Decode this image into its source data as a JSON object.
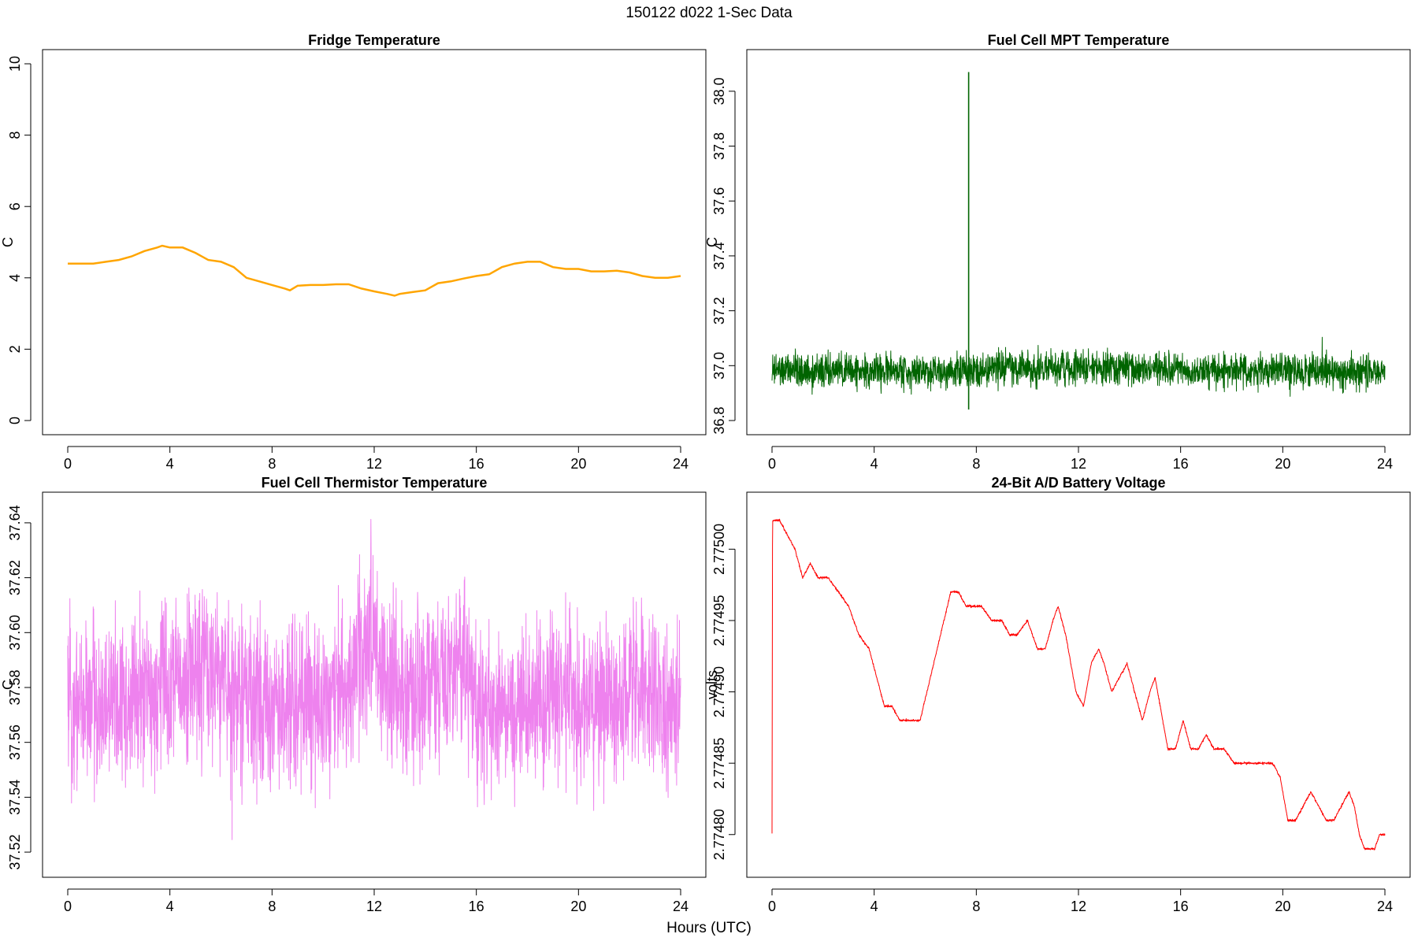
{
  "title": "150122   d022   1-Sec Data",
  "xlabel": "Hours (UTC)",
  "chart_data": [
    {
      "type": "line",
      "title": "Fridge Temperature",
      "ylabel": "C",
      "xlabel": "Hours (UTC)",
      "color": "#FFA500",
      "noise": 0,
      "xlim": [
        0,
        24
      ],
      "ylim": [
        0,
        10
      ],
      "xticks": [
        0,
        4,
        8,
        12,
        16,
        20,
        24
      ],
      "yticks": [
        0,
        2,
        4,
        6,
        8,
        10
      ],
      "ytick_labels": [
        "0",
        "2",
        "4",
        "6",
        "8",
        "10"
      ],
      "series": [
        {
          "name": "Fridge Temperature",
          "x": [
            0,
            0.5,
            1,
            1.5,
            2,
            2.5,
            3,
            3.5,
            3.7,
            4,
            4.5,
            5,
            5.5,
            6,
            6.5,
            7,
            7.5,
            8,
            8.5,
            8.7,
            9,
            9.5,
            10,
            10.5,
            11,
            11.5,
            12,
            12.5,
            12.8,
            13,
            13.5,
            14,
            14.5,
            15,
            15.5,
            16,
            16.5,
            17,
            17.5,
            18,
            18.5,
            19,
            19.5,
            20,
            20.5,
            21,
            21.5,
            22,
            22.5,
            23,
            23.5,
            24
          ],
          "values": [
            4.4,
            4.4,
            4.4,
            4.45,
            4.5,
            4.6,
            4.75,
            4.85,
            4.9,
            4.85,
            4.85,
            4.7,
            4.5,
            4.45,
            4.3,
            4.0,
            3.9,
            3.8,
            3.7,
            3.65,
            3.78,
            3.8,
            3.8,
            3.82,
            3.82,
            3.7,
            3.62,
            3.55,
            3.5,
            3.55,
            3.6,
            3.65,
            3.85,
            3.9,
            3.98,
            4.05,
            4.1,
            4.3,
            4.4,
            4.45,
            4.45,
            4.3,
            4.25,
            4.25,
            4.18,
            4.18,
            4.2,
            4.15,
            4.05,
            4.0,
            4.0,
            4.05
          ]
        }
      ]
    },
    {
      "type": "line",
      "title": "Fuel Cell MPT Temperature",
      "ylabel": "C",
      "xlabel": "Hours (UTC)",
      "color": "#006400",
      "noise": 0.09,
      "xlim": [
        0,
        24
      ],
      "ylim": [
        36.8,
        38.1
      ],
      "xticks": [
        0,
        4,
        8,
        12,
        16,
        20,
        24
      ],
      "yticks": [
        36.8,
        37.0,
        37.2,
        37.4,
        37.6,
        37.8,
        38.0
      ],
      "ytick_labels": [
        "36.8",
        "37.0",
        "37.2",
        "37.4",
        "37.6",
        "37.8",
        "38.0"
      ],
      "spike": {
        "x": 7.7,
        "value": 38.07,
        "low": 36.84
      },
      "series": [
        {
          "name": "Fuel Cell MPT Temperature",
          "x": [
            0,
            2,
            4,
            6,
            8,
            10,
            12,
            14,
            16,
            18,
            20,
            22,
            24
          ],
          "values": [
            36.98,
            36.98,
            36.98,
            36.98,
            36.99,
            36.99,
            36.99,
            36.99,
            36.98,
            36.98,
            36.98,
            36.98,
            36.98
          ]
        }
      ]
    },
    {
      "type": "line",
      "title": "Fuel Cell Thermistor Temperature",
      "ylabel": "C",
      "xlabel": "Hours (UTC)",
      "color": "#EE82EE",
      "noise": 0.045,
      "xlim": [
        0,
        24
      ],
      "ylim": [
        37.516,
        37.646
      ],
      "xticks": [
        0,
        4,
        8,
        12,
        16,
        20,
        24
      ],
      "yticks": [
        37.52,
        37.54,
        37.56,
        37.58,
        37.6,
        37.62,
        37.64
      ],
      "ytick_labels": [
        "37.52",
        "37.54",
        "37.56",
        "37.58",
        "37.60",
        "37.62",
        "37.64"
      ],
      "series": [
        {
          "name": "Fuel Cell Thermistor Temperature",
          "x": [
            0,
            1,
            2,
            3,
            4,
            5,
            6,
            7,
            8,
            9,
            10,
            11,
            11.8,
            12.5,
            13,
            14,
            15,
            15.5,
            16,
            17,
            18,
            19,
            20,
            21,
            22,
            23,
            24
          ],
          "values": [
            37.575,
            37.575,
            37.574,
            37.577,
            37.582,
            37.585,
            37.584,
            37.575,
            37.572,
            37.574,
            37.576,
            37.578,
            37.602,
            37.582,
            37.575,
            37.577,
            37.585,
            37.59,
            37.573,
            37.57,
            37.572,
            37.574,
            37.575,
            37.576,
            37.577,
            37.575,
            37.574
          ]
        }
      ]
    },
    {
      "type": "line",
      "title": "24-Bit A/D Battery Voltage",
      "ylabel": "volts",
      "xlabel": "Hours (UTC)",
      "color": "#FF0000",
      "noise": 1.2e-06,
      "xlim": [
        0,
        24
      ],
      "ylim": [
        2.77478,
        2.77503
      ],
      "xticks": [
        0,
        4,
        8,
        12,
        16,
        20,
        24
      ],
      "yticks": [
        2.7748,
        2.77485,
        2.7749,
        2.77495,
        2.775
      ],
      "ytick_labels": [
        "2.77480",
        "2.77485",
        "2.77490",
        "2.77495",
        "2.77500"
      ],
      "series": [
        {
          "name": "24-Bit A/D Battery Voltage",
          "x": [
            0,
            0.02,
            0.05,
            0.3,
            0.6,
            0.9,
            1.2,
            1.5,
            1.8,
            2.2,
            2.6,
            3.0,
            3.4,
            3.8,
            4.1,
            4.4,
            4.7,
            5.0,
            5.4,
            5.8,
            6.2,
            6.6,
            7.0,
            7.3,
            7.6,
            7.9,
            8.2,
            8.6,
            9.0,
            9.3,
            9.6,
            10.0,
            10.4,
            10.7,
            11.0,
            11.2,
            11.5,
            11.9,
            12.2,
            12.5,
            12.8,
            13.0,
            13.3,
            13.6,
            13.9,
            14.2,
            14.5,
            14.8,
            15.0,
            15.3,
            15.5,
            15.8,
            16.1,
            16.4,
            16.7,
            17.0,
            17.3,
            17.7,
            18.1,
            18.5,
            18.9,
            19.3,
            19.6,
            19.9,
            20.2,
            20.5,
            20.8,
            21.1,
            21.4,
            21.7,
            22.0,
            22.3,
            22.6,
            22.8,
            23.0,
            23.2,
            23.4,
            23.6,
            23.8,
            24.0
          ],
          "values": [
            2.7748,
            2.77502,
            2.77502,
            2.77502,
            2.77501,
            2.775,
            2.77498,
            2.77499,
            2.77498,
            2.77498,
            2.77497,
            2.77496,
            2.77494,
            2.77493,
            2.77491,
            2.77489,
            2.77489,
            2.77488,
            2.77488,
            2.77488,
            2.77491,
            2.77494,
            2.77497,
            2.77497,
            2.77496,
            2.77496,
            2.77496,
            2.77495,
            2.77495,
            2.77494,
            2.77494,
            2.77495,
            2.77493,
            2.77493,
            2.77495,
            2.77496,
            2.77494,
            2.7749,
            2.77489,
            2.77492,
            2.77493,
            2.77492,
            2.7749,
            2.77491,
            2.77492,
            2.7749,
            2.77488,
            2.7749,
            2.77491,
            2.77488,
            2.77486,
            2.77486,
            2.77488,
            2.77486,
            2.77486,
            2.77487,
            2.77486,
            2.77486,
            2.77485,
            2.77485,
            2.77485,
            2.77485,
            2.77485,
            2.77484,
            2.77481,
            2.77481,
            2.77482,
            2.77483,
            2.77482,
            2.77481,
            2.77481,
            2.77482,
            2.77483,
            2.77482,
            2.7748,
            2.77479,
            2.77479,
            2.77479,
            2.7748,
            2.7748
          ]
        }
      ]
    }
  ]
}
